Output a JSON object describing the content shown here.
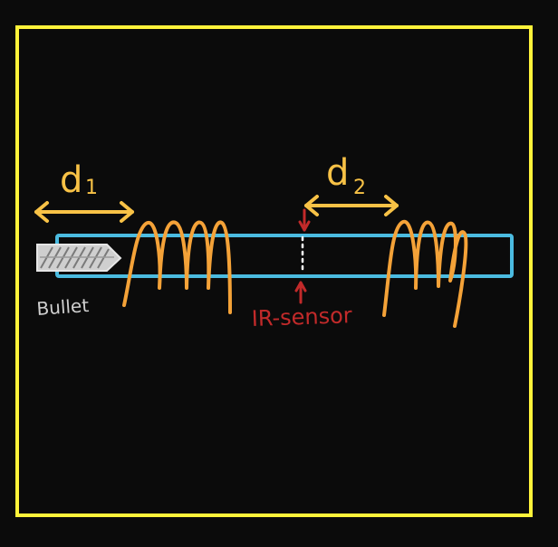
{
  "labels": {
    "d1": "d",
    "d1_sub": "1",
    "d2": "d",
    "d2_sub": "2",
    "bullet": "Bullet",
    "sensor": "IR-sensor"
  },
  "colors": {
    "background": "#0b0b0b",
    "frame": "#fff33a",
    "tube": "#4bbbe0",
    "coil": "#f4a238",
    "dimension": "#f8c246",
    "bullet": "#d6d6d6",
    "sensor": "#c22a2a",
    "beam": "#ffffff"
  }
}
